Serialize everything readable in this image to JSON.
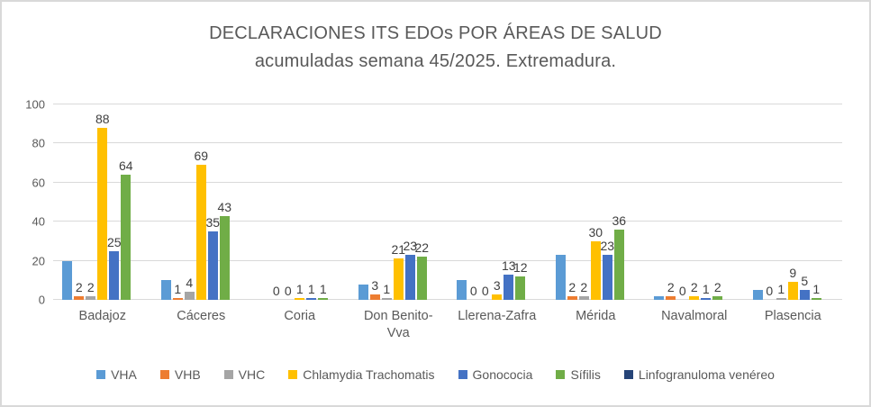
{
  "title": {
    "line1": "DECLARACIONES ITS EDOs POR ÁREAS DE SALUD",
    "line2": "acumuladas semana 45/2025. Extremadura."
  },
  "chart_data": {
    "type": "bar",
    "title": "DECLARACIONES ITS EDOs POR ÁREAS DE SALUD acumuladas semana 45/2025. Extremadura.",
    "xlabel": "",
    "ylabel": "",
    "ylim": [
      0,
      100
    ],
    "grid": true,
    "legend_position": "bottom",
    "categories": [
      "Badajoz",
      "Cáceres",
      "Coria",
      "Don Benito-\nVva",
      "Llerena-Zafra",
      "Mérida",
      "Navalmoral",
      "Plasencia"
    ],
    "y_axis": {
      "min": 0,
      "max": 100,
      "step": 20,
      "ticks": [
        "0",
        "20",
        "40",
        "60",
        "80",
        "100"
      ]
    },
    "series": [
      {
        "name": "VHA",
        "color": "#5B9BD5",
        "labels_shown": false,
        "values": [
          20,
          10,
          0,
          8,
          10,
          23,
          2,
          5
        ]
      },
      {
        "name": "VHB",
        "color": "#ED7D31",
        "labels_shown": true,
        "values": [
          2,
          1,
          0,
          3,
          0,
          2,
          2,
          0
        ]
      },
      {
        "name": "VHC",
        "color": "#A5A5A5",
        "labels_shown": true,
        "values": [
          2,
          4,
          0,
          1,
          0,
          2,
          0,
          1
        ]
      },
      {
        "name": "Chlamydia Trachomatis",
        "color": "#FFC000",
        "labels_shown": true,
        "values": [
          88,
          69,
          1,
          21,
          3,
          30,
          2,
          9
        ]
      },
      {
        "name": "Gonococia",
        "color": "#4472C4",
        "labels_shown": true,
        "values": [
          25,
          35,
          1,
          23,
          13,
          23,
          1,
          5
        ]
      },
      {
        "name": "Sífilis",
        "color": "#70AD47",
        "labels_shown": true,
        "values": [
          64,
          43,
          1,
          22,
          12,
          36,
          2,
          1
        ]
      },
      {
        "name": "Linfogranuloma venéreo",
        "color": "#264478",
        "labels_shown": false,
        "values": [
          0,
          0,
          0,
          0,
          0,
          0,
          0,
          0
        ]
      }
    ]
  }
}
